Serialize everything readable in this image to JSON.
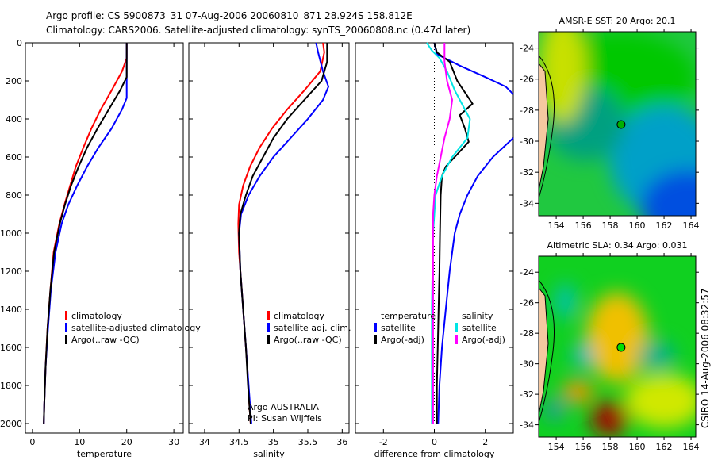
{
  "title": {
    "line1": "Argo profile: CS 5900873_31 07-Aug-2006 20060810_871 28.924S 158.812E",
    "line2": "Climatology: CARS2006. Satellite-adjusted climatology: synTS_20060808.nc (0.47d later)"
  },
  "colors": {
    "climatology": "#ff0000",
    "satellite": "#0000ff",
    "argo": "#000000",
    "sal_sat": "#00e5e5",
    "sal_argo": "#ff00ff"
  },
  "chart_data": [
    {
      "type": "line",
      "id": "temp",
      "xlabel": "temperature",
      "ylabel": "",
      "xlim": [
        -1.5,
        32
      ],
      "ylim": [
        2050,
        0
      ],
      "xticks": [
        0,
        10,
        20,
        30
      ],
      "yticks": [
        0,
        200,
        400,
        600,
        800,
        1000,
        1200,
        1400,
        1600,
        1800,
        2000
      ],
      "legend": [
        "climatology",
        "satellite-adjusted climatology",
        "Argo(..raw -QC)"
      ],
      "series": [
        {
          "name": "climatology",
          "color": "climatology",
          "depth": [
            0,
            80,
            150,
            250,
            350,
            450,
            550,
            650,
            750,
            850,
            950,
            1100,
            1300,
            1500,
            1700,
            1900,
            2000
          ],
          "values": [
            20,
            20,
            19,
            16.8,
            14.5,
            12.5,
            10.8,
            9.2,
            8,
            6.8,
            5.7,
            4.5,
            3.8,
            3.2,
            2.8,
            2.5,
            2.4
          ]
        },
        {
          "name": "satellite-adjusted climatology",
          "color": "satellite",
          "depth": [
            0,
            100,
            200,
            290,
            350,
            450,
            550,
            650,
            750,
            850,
            950,
            1100,
            1300,
            1500,
            1700,
            1900,
            2000
          ],
          "values": [
            20,
            20,
            20,
            20,
            19,
            16.8,
            14,
            11.6,
            9.5,
            7.6,
            6.2,
            4.9,
            3.9,
            3.3,
            2.8,
            2.5,
            2.4
          ]
        },
        {
          "name": "Argo(..raw -QC)",
          "color": "argo",
          "depth": [
            0,
            100,
            180,
            250,
            350,
            450,
            550,
            650,
            750,
            850,
            950,
            1100,
            1300,
            1500,
            1700,
            1900,
            2000
          ],
          "values": [
            20,
            20,
            20,
            18.6,
            16.2,
            13.8,
            11.6,
            9.8,
            8.2,
            6.9,
            5.8,
            4.6,
            3.8,
            3.2,
            2.8,
            2.5,
            2.4
          ]
        }
      ]
    },
    {
      "type": "line",
      "id": "sal",
      "xlabel": "salinity",
      "xlim": [
        33.77,
        36.1
      ],
      "ylim": [
        2050,
        0
      ],
      "xticks": [
        34,
        34.5,
        35,
        35.5,
        36
      ],
      "legend": [
        "climatology",
        "satellite adj. clim.",
        "Argo(..raw -QC)"
      ],
      "annotation": [
        "Argo AUSTRALIA",
        "PI: Susan Wijffels"
      ],
      "series": [
        {
          "name": "climatology",
          "color": "climatology",
          "depth": [
            0,
            50,
            150,
            250,
            350,
            450,
            550,
            650,
            750,
            850,
            950,
            1100,
            1300,
            1500,
            1700,
            1900,
            2000
          ],
          "values": [
            35.72,
            35.74,
            35.68,
            35.45,
            35.2,
            34.98,
            34.8,
            34.66,
            34.56,
            34.5,
            34.49,
            34.5,
            34.54,
            34.58,
            34.62,
            34.65,
            34.67
          ]
        },
        {
          "name": "satellite adj. clim.",
          "color": "satellite",
          "depth": [
            0,
            50,
            150,
            230,
            300,
            400,
            500,
            600,
            700,
            800,
            900,
            1000,
            1200,
            1400,
            1600,
            1800,
            2000
          ],
          "values": [
            35.62,
            35.65,
            35.72,
            35.8,
            35.72,
            35.5,
            35.25,
            35.0,
            34.8,
            34.64,
            34.53,
            34.5,
            34.52,
            34.56,
            34.6,
            34.64,
            34.68
          ]
        },
        {
          "name": "Argo(..raw -QC)",
          "color": "argo",
          "depth": [
            0,
            100,
            200,
            300,
            400,
            500,
            600,
            700,
            800,
            900,
            1000,
            1200,
            1400,
            1600,
            1800,
            2000
          ],
          "values": [
            35.78,
            35.78,
            35.7,
            35.45,
            35.2,
            35.0,
            34.85,
            34.7,
            34.6,
            34.52,
            34.5,
            34.52,
            34.56,
            34.6,
            34.63,
            34.67
          ]
        }
      ]
    },
    {
      "type": "line",
      "id": "diff",
      "xlabel": "difference from climatology",
      "xlim": [
        -3.1,
        3.1
      ],
      "ylim": [
        2050,
        0
      ],
      "xticks": [
        -2,
        0,
        2
      ],
      "legend_temp": [
        "temperature",
        "satellite",
        "Argo(-adj)"
      ],
      "legend_sal": [
        "salinity",
        "satellite",
        "Argo(-adj)"
      ],
      "series": [
        {
          "name": "temperature satellite",
          "color": "satellite",
          "depth": [
            0,
            60,
            120,
            180,
            230,
            270
          ],
          "values": [
            0,
            0.1,
            1.0,
            2.0,
            2.8,
            3.1
          ]
        },
        {
          "name": "temperature satellite deep",
          "color": "satellite",
          "depth": [
            500,
            600,
            700,
            800,
            900,
            1000,
            1200,
            1400,
            1600,
            1800,
            2000
          ],
          "values": [
            3.1,
            2.3,
            1.7,
            1.3,
            1.0,
            0.8,
            0.6,
            0.45,
            0.3,
            0.2,
            0.15
          ]
        },
        {
          "name": "temperature Argo(-adj)",
          "color": "argo",
          "depth": [
            0,
            50,
            100,
            200,
            280,
            320,
            380,
            450,
            520,
            600,
            650,
            700,
            800,
            1000,
            1200,
            1500,
            1800,
            2000
          ],
          "values": [
            0,
            0.1,
            0.6,
            0.9,
            1.3,
            1.5,
            1.0,
            1.2,
            1.35,
            0.8,
            0.45,
            0.3,
            0.25,
            0.22,
            0.2,
            0.15,
            0.1,
            0.1
          ]
        },
        {
          "name": "salinity satellite",
          "color": "sal_sat",
          "depth": [
            0,
            40,
            80,
            150,
            250,
            350,
            400,
            500,
            550,
            600,
            700,
            800,
            1000,
            1400,
            2000
          ],
          "values": [
            -0.3,
            -0.1,
            0.2,
            0.5,
            0.8,
            1.2,
            1.4,
            1.3,
            1.0,
            0.7,
            0.3,
            0.05,
            -0.05,
            -0.1,
            -0.1
          ]
        },
        {
          "name": "salinity Argo(-adj)",
          "color": "sal_argo",
          "depth": [
            0,
            100,
            200,
            300,
            400,
            500,
            600,
            700,
            800,
            900,
            1200,
            2000
          ],
          "values": [
            0.4,
            0.4,
            0.5,
            0.7,
            0.6,
            0.4,
            0.25,
            0.1,
            0.0,
            -0.05,
            -0.05,
            -0.05
          ]
        }
      ]
    }
  ],
  "maps": [
    {
      "title": "AMSR-E SST: 20 Argo: 20.1",
      "xticks": [
        154,
        156,
        158,
        160,
        162,
        164
      ],
      "yticks": [
        -24,
        -26,
        -28,
        -30,
        -32,
        -34
      ],
      "lonlim": [
        152.7,
        164.35
      ],
      "latlim": [
        -22.95,
        -34.8
      ],
      "argo_lon": 158.812,
      "argo_lat": -28.924,
      "marker_color": "#00b000"
    },
    {
      "title": "Altimetric SLA: 0.34 Argo: 0.031",
      "xticks": [
        154,
        156,
        158,
        160,
        162,
        164
      ],
      "yticks": [
        -24,
        -26,
        -28,
        -30,
        -32,
        -34
      ],
      "lonlim": [
        152.7,
        164.35
      ],
      "latlim": [
        -22.95,
        -34.8
      ],
      "argo_lon": 158.812,
      "argo_lat": -28.924,
      "marker_color": "#00e000"
    }
  ],
  "footer": "CSIRO 14-Aug-2006 08:32:57"
}
